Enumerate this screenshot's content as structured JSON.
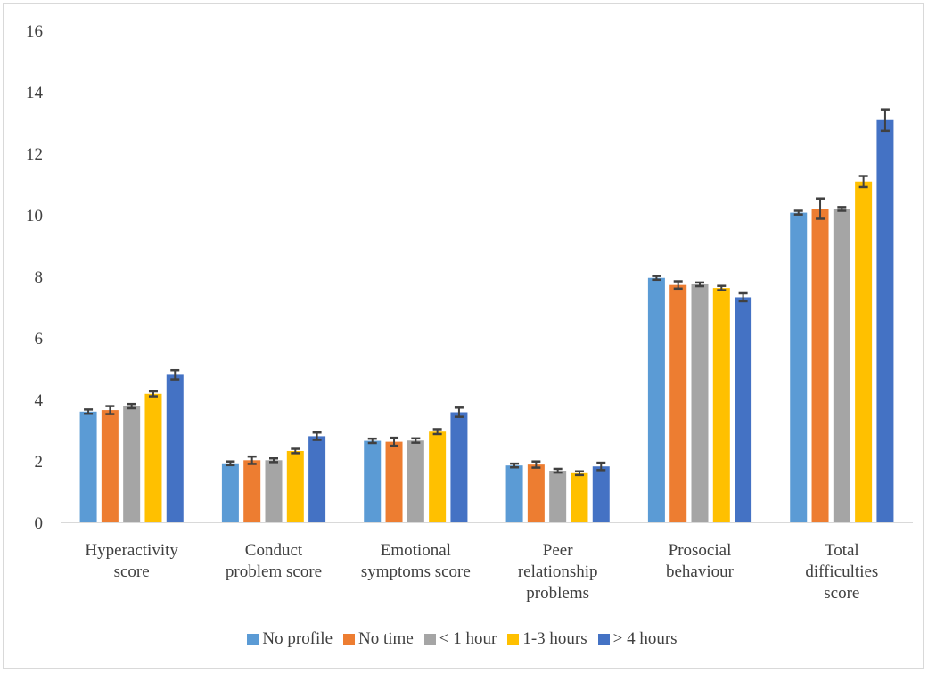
{
  "chart_data": {
    "type": "bar",
    "categories": [
      [
        "Hyperactivity",
        "score"
      ],
      [
        "Conduct",
        "problem score"
      ],
      [
        "Emotional",
        "symptoms score"
      ],
      [
        "Peer",
        "relationship",
        "problems"
      ],
      [
        "Prosocial",
        "behaviour"
      ],
      [
        "Total",
        "difficulties",
        "score"
      ]
    ],
    "ylim": [
      0,
      16
    ],
    "yticks": [
      0,
      2,
      4,
      6,
      8,
      10,
      12,
      14,
      16
    ],
    "grid": false,
    "legend_position": "bottom",
    "series": [
      {
        "name": "No profile",
        "color": "#5b9bd5",
        "values": [
          3.6,
          1.92,
          2.65,
          1.85,
          7.95,
          10.07
        ],
        "errors": [
          0.07,
          0.06,
          0.07,
          0.06,
          0.06,
          0.06
        ]
      },
      {
        "name": "No time",
        "color": "#ed7d31",
        "values": [
          3.65,
          2.02,
          2.62,
          1.88,
          7.72,
          10.2
        ],
        "errors": [
          0.13,
          0.12,
          0.13,
          0.1,
          0.12,
          0.33
        ]
      },
      {
        "name": "< 1 hour",
        "color": "#a5a5a5",
        "values": [
          3.78,
          2.02,
          2.66,
          1.68,
          7.74,
          10.19
        ],
        "errors": [
          0.07,
          0.06,
          0.07,
          0.06,
          0.06,
          0.06
        ]
      },
      {
        "name": "1-3 hours",
        "color": "#ffc000",
        "values": [
          4.18,
          2.32,
          2.95,
          1.6,
          7.62,
          11.08
        ],
        "errors": [
          0.08,
          0.07,
          0.08,
          0.06,
          0.07,
          0.18
        ]
      },
      {
        "name": "> 4 hours",
        "color": "#4472c4",
        "values": [
          4.8,
          2.8,
          3.58,
          1.82,
          7.32,
          13.08
        ],
        "errors": [
          0.15,
          0.12,
          0.15,
          0.12,
          0.13,
          0.35
        ]
      }
    ]
  }
}
